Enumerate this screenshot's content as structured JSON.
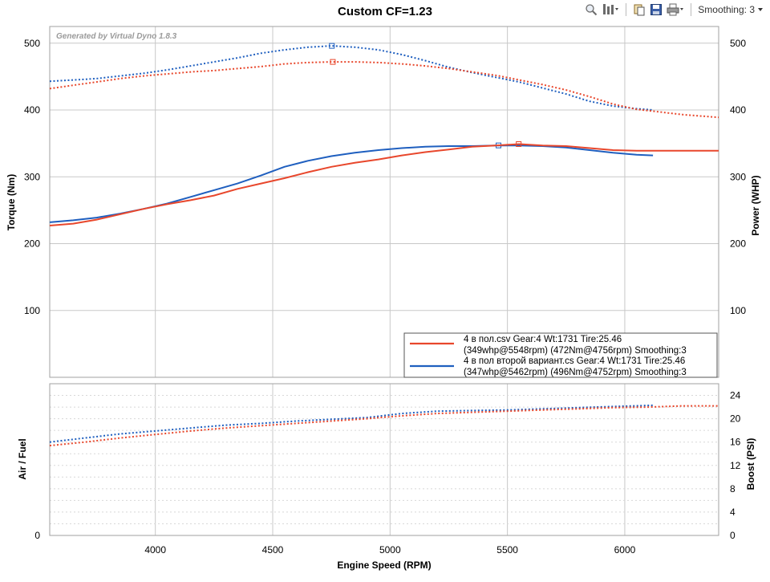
{
  "toolbar": {
    "smoothing_label": "Smoothing: 3",
    "icons": [
      "zoom-icon",
      "filter-icon",
      "copy-icon",
      "save-icon",
      "print-icon"
    ]
  },
  "chart_data": {
    "type": "line",
    "title": "Custom CF=1.23",
    "watermark": "Generated by Virtual Dyno 1.8.3",
    "xlabel": "Engine Speed (RPM)",
    "xlim": [
      3550,
      6400
    ],
    "x_ticks": [
      4000,
      4500,
      5000,
      5500,
      6000
    ],
    "grid": true,
    "top_panel": {
      "ylabel_left": "Torque (Nm)",
      "ylabel_right": "Power (WHP)",
      "ylim": [
        0,
        525
      ],
      "y_ticks_left": [
        100,
        200,
        300,
        400,
        500
      ],
      "y_ticks_right": [
        100,
        200,
        300,
        400,
        500
      ],
      "legend_position": "bottom-right"
    },
    "bottom_panel": {
      "ylabel_left": "Air / Fuel",
      "ylabel_right": "Boost (PSI)",
      "y_ticks_left": [
        0
      ],
      "ylim_right": [
        0,
        26
      ],
      "y_ticks_right": [
        0,
        4,
        8,
        12,
        16,
        20,
        24
      ]
    },
    "series": [
      {
        "name": "4 в пол.csv Gear:4 Wt:1731 Tire:25.46",
        "summary": "(349whp@5548rpm) (472Nm@4756rpm) Smoothing:3",
        "color": "#e8472c",
        "power_whp": {
          "x": [
            3550,
            3650,
            3750,
            3850,
            3950,
            4050,
            4150,
            4250,
            4350,
            4450,
            4550,
            4650,
            4750,
            4850,
            4950,
            5050,
            5150,
            5250,
            5350,
            5450,
            5550,
            5650,
            5750,
            5850,
            5950,
            6050,
            6150,
            6250,
            6400
          ],
          "y": [
            227,
            230,
            236,
            244,
            252,
            259,
            265,
            272,
            282,
            290,
            298,
            307,
            315,
            321,
            326,
            332,
            337,
            341,
            345,
            347,
            349,
            347,
            346,
            343,
            340,
            339,
            339,
            339,
            339
          ]
        },
        "torque_nm": {
          "x": [
            3550,
            3650,
            3750,
            3850,
            3950,
            4050,
            4150,
            4250,
            4350,
            4450,
            4550,
            4650,
            4750,
            4850,
            4950,
            5050,
            5150,
            5250,
            5350,
            5450,
            5550,
            5650,
            5750,
            5850,
            5950,
            6050,
            6150,
            6250,
            6400
          ],
          "y": [
            432,
            437,
            442,
            447,
            451,
            454,
            457,
            459,
            462,
            465,
            469,
            471,
            472,
            472,
            471,
            469,
            466,
            462,
            457,
            452,
            445,
            438,
            430,
            420,
            409,
            401,
            397,
            393,
            389
          ]
        },
        "torque_peak": {
          "x": 4756,
          "y": 472
        },
        "power_peak": {
          "x": 5548,
          "y": 349
        },
        "boost_psi": {
          "x": [
            3550,
            3700,
            3850,
            4000,
            4150,
            4300,
            4450,
            4600,
            4750,
            4900,
            5050,
            5200,
            5350,
            5500,
            5650,
            5800,
            5950,
            6100,
            6250,
            6400
          ],
          "y": [
            15.4,
            16.0,
            16.7,
            17.3,
            17.9,
            18.4,
            18.8,
            19.2,
            19.6,
            20.0,
            20.5,
            20.9,
            21.1,
            21.3,
            21.5,
            21.7,
            21.9,
            22.0,
            22.2,
            22.2
          ]
        }
      },
      {
        "name": "4 в пол второй вариант.cs Gear:4 Wt:1731 Tire:25.46",
        "summary": "(347whp@5462rpm) (496Nm@4752rpm) Smoothing:3",
        "color": "#1f5fbf",
        "power_whp": {
          "x": [
            3550,
            3650,
            3750,
            3850,
            3950,
            4050,
            4150,
            4250,
            4350,
            4450,
            4550,
            4650,
            4750,
            4850,
            4950,
            5050,
            5150,
            5250,
            5350,
            5450,
            5550,
            5650,
            5750,
            5850,
            5950,
            6050,
            6120
          ],
          "y": [
            232,
            235,
            239,
            245,
            252,
            260,
            270,
            280,
            290,
            302,
            315,
            324,
            331,
            336,
            340,
            343,
            345,
            346,
            346,
            347,
            347,
            346,
            344,
            340,
            336,
            333,
            332
          ]
        },
        "torque_nm": {
          "x": [
            3550,
            3650,
            3750,
            3850,
            3950,
            4050,
            4150,
            4250,
            4350,
            4450,
            4550,
            4650,
            4750,
            4850,
            4950,
            5050,
            5150,
            5250,
            5350,
            5450,
            5550,
            5650,
            5750,
            5850,
            5950,
            6050,
            6120
          ],
          "y": [
            443,
            445,
            447,
            451,
            455,
            460,
            466,
            472,
            478,
            485,
            490,
            494,
            496,
            494,
            490,
            483,
            474,
            464,
            456,
            449,
            442,
            433,
            424,
            413,
            406,
            402,
            400
          ]
        },
        "torque_peak": {
          "x": 4752,
          "y": 496
        },
        "power_peak": {
          "x": 5462,
          "y": 347
        },
        "boost_psi": {
          "x": [
            3550,
            3700,
            3850,
            4000,
            4150,
            4300,
            4450,
            4600,
            4750,
            4900,
            5050,
            5200,
            5350,
            5500,
            5650,
            5800,
            5950,
            6120
          ],
          "y": [
            16.0,
            16.7,
            17.4,
            17.9,
            18.4,
            18.9,
            19.2,
            19.6,
            19.9,
            20.2,
            20.9,
            21.3,
            21.4,
            21.5,
            21.7,
            21.9,
            22.1,
            22.3
          ]
        }
      }
    ]
  }
}
